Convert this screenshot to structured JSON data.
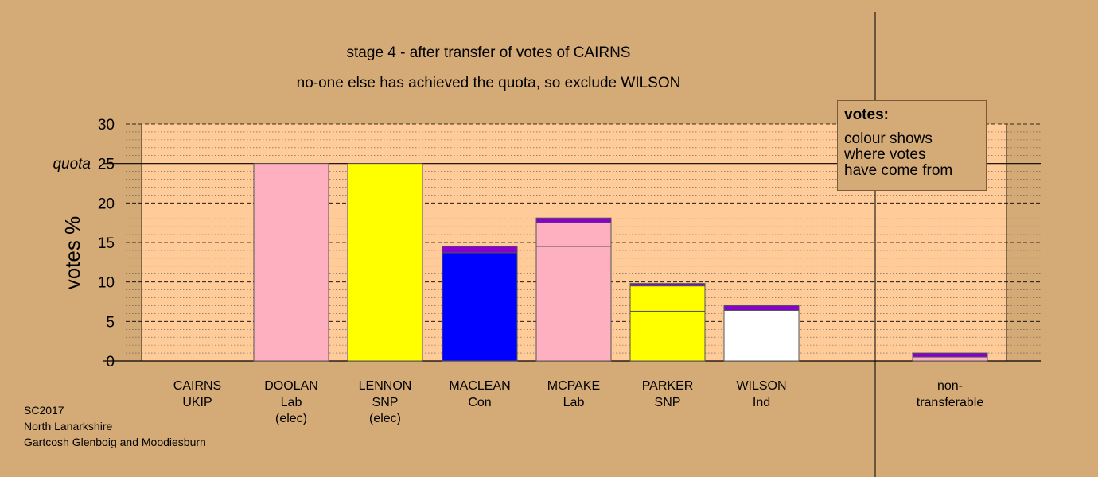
{
  "chart_data": {
    "type": "bar",
    "title": "stage 4 - after transfer of votes of CAIRNS",
    "subtitle": "no-one else has achieved the quota, so exclude WILSON",
    "ylabel": "votes %",
    "ylim": [
      0,
      30
    ],
    "yticks": [
      "0",
      "5",
      "10",
      "15",
      "20",
      "25",
      "30"
    ],
    "quota_label": "quota",
    "quota_value": 25,
    "candidates": [
      {
        "name": "CAIRNS",
        "party": "UKIP",
        "status": "",
        "segments": []
      },
      {
        "name": "DOOLAN",
        "party": "Lab",
        "status": "(elec)",
        "segments": [
          {
            "from": "first preferences",
            "value": 25.0,
            "color": "#ffb0c0"
          }
        ]
      },
      {
        "name": "LENNON",
        "party": "SNP",
        "status": "(elec)",
        "segments": [
          {
            "from": "first preferences",
            "value": 25.0,
            "color": "#ffff00"
          }
        ]
      },
      {
        "name": "MACLEAN",
        "party": "Con",
        "status": "",
        "segments": [
          {
            "from": "first preferences",
            "value": 13.7,
            "color": "#0000ff"
          },
          {
            "from": "CAIRNS",
            "value": 0.8,
            "color": "#8800cc"
          }
        ]
      },
      {
        "name": "MCPAKE",
        "party": "Lab",
        "status": "",
        "segments": [
          {
            "from": "first preferences",
            "value": 14.5,
            "color": "#ffb0c0"
          },
          {
            "from": "DOOLAN",
            "value": 3.0,
            "color": "#ffb0c0"
          },
          {
            "from": "CAIRNS",
            "value": 0.6,
            "color": "#8800cc"
          }
        ]
      },
      {
        "name": "PARKER",
        "party": "SNP",
        "status": "",
        "segments": [
          {
            "from": "first preferences",
            "value": 6.3,
            "color": "#ffff00"
          },
          {
            "from": "LENNON",
            "value": 3.2,
            "color": "#ffff00"
          },
          {
            "from": "CAIRNS",
            "value": 0.3,
            "color": "#8800cc"
          }
        ]
      },
      {
        "name": "WILSON",
        "party": "Ind",
        "status": "",
        "segments": [
          {
            "from": "first preferences",
            "value": 6.4,
            "color": "#ffffff"
          },
          {
            "from": "CAIRNS",
            "value": 0.6,
            "color": "#8800cc"
          }
        ]
      }
    ],
    "nontransferable": {
      "label1": "non-",
      "label2": "transferable",
      "segments": [
        {
          "from": "previous",
          "value": 0.5,
          "color": "#ffb0c0"
        },
        {
          "from": "CAIRNS",
          "value": 0.5,
          "color": "#8800cc"
        }
      ]
    }
  },
  "legend": {
    "title": "votes:",
    "line1": "colour shows",
    "line2": "where votes",
    "line3": "have come from"
  },
  "footer": {
    "line1": "SC2017",
    "line2": "North Lanarkshire",
    "line3": "Gartcosh Glenboig and Moodiesburn"
  }
}
